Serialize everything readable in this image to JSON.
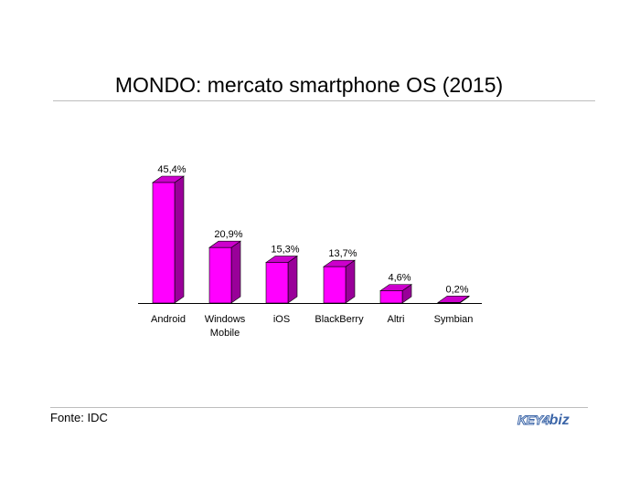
{
  "title": "MONDO: mercato smartphone OS (2015)",
  "source": "Fonte: IDC",
  "logo": {
    "part1": "KEY4",
    "part2": "biz"
  },
  "colors": {
    "bar_front": "#ff00ff",
    "bar_side": "#990099",
    "bar_top": "#cc00cc"
  },
  "chart_data": {
    "type": "bar",
    "categories": [
      "Android",
      "Windows Mobile",
      "iOS",
      "BlackBerry",
      "Altri",
      "Symbian"
    ],
    "values": [
      45.4,
      20.9,
      15.3,
      13.7,
      4.6,
      0.2
    ],
    "data_labels": [
      "45,4%",
      "20,9%",
      "15,3%",
      "13,7%",
      "4,6%",
      "0,2%"
    ],
    "title": "MONDO: mercato smartphone OS (2015)",
    "xlabel": "",
    "ylabel": "",
    "grid": false,
    "ylim": [
      0,
      50
    ]
  }
}
